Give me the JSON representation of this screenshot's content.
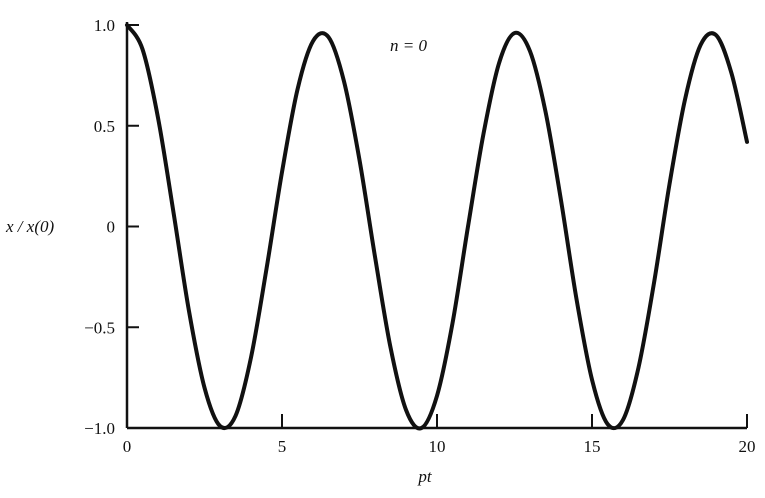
{
  "chart_data": {
    "type": "line",
    "title": "",
    "annotation": "n = 0",
    "xlabel": "pt",
    "ylabel": "x / x(0)",
    "xlim": [
      0,
      20
    ],
    "ylim": [
      -1.0,
      1.0
    ],
    "grid": false,
    "legend": "none",
    "line_color": "#111111",
    "x_ticks": [
      "0",
      "5",
      "10",
      "15",
      "20"
    ],
    "x_tick_values": [
      0,
      5,
      10,
      15,
      20
    ],
    "y_ticks": [
      "1.0",
      "0.5",
      "0",
      "−0.5",
      "−1.0"
    ],
    "y_tick_values": [
      1.0,
      0.5,
      0,
      -0.5,
      -1.0
    ],
    "series": [
      {
        "x": [
          0,
          0.5,
          1,
          1.5,
          2,
          2.5,
          3,
          3.5,
          4,
          4.5,
          5,
          5.5,
          6,
          6.5,
          7,
          7.5,
          8,
          8.5,
          9,
          9.5,
          10,
          10.5,
          11,
          11.5,
          12,
          12.5,
          13,
          13.5,
          14,
          14.5,
          15,
          15.5,
          16,
          16.5,
          17,
          17.5,
          18,
          18.5,
          19,
          19.5,
          20
        ],
        "y": [
          1.0,
          0.88,
          0.54,
          0.07,
          -0.42,
          -0.8,
          -0.99,
          -0.94,
          -0.65,
          -0.21,
          0.27,
          0.68,
          0.92,
          0.94,
          0.72,
          0.33,
          -0.15,
          -0.6,
          -0.91,
          -1.0,
          -0.84,
          -0.48,
          0.0,
          0.46,
          0.81,
          0.96,
          0.87,
          0.57,
          0.13,
          -0.36,
          -0.76,
          -0.98,
          -0.96,
          -0.7,
          -0.28,
          0.21,
          0.63,
          0.9,
          0.95,
          0.76,
          0.42
        ]
      }
    ]
  }
}
